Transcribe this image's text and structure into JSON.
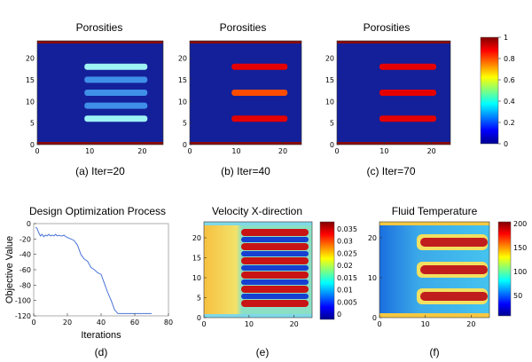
{
  "porosity_colorbar": {
    "ticks": [
      "1",
      "0.8",
      "0.6",
      "0.4",
      "0.2",
      "0"
    ]
  },
  "chart_data": [
    {
      "type": "heatmap",
      "title": "Porosities",
      "caption": "(a) Iter=20",
      "xlim": [
        0,
        24
      ],
      "ylim": [
        0,
        24
      ],
      "xticks": [
        "0",
        "10",
        "20"
      ],
      "yticks": [
        "0",
        "5",
        "10",
        "15",
        "20"
      ],
      "background_value": 0,
      "bars": [
        {
          "y": 18,
          "x0": 9,
          "x1": 21,
          "value": 0.6
        },
        {
          "y": 15,
          "x0": 9,
          "x1": 21,
          "value": 0.4
        },
        {
          "y": 12,
          "x0": 9,
          "x1": 21,
          "value": 0.4
        },
        {
          "y": 9,
          "x0": 9,
          "x1": 21,
          "value": 0.4
        },
        {
          "y": 6,
          "x0": 9,
          "x1": 21,
          "value": 0.6
        }
      ]
    },
    {
      "type": "heatmap",
      "title": "Porosities",
      "caption": "(b) Iter=40",
      "xlim": [
        0,
        24
      ],
      "ylim": [
        0,
        24
      ],
      "xticks": [
        "0",
        "10",
        "20"
      ],
      "yticks": [
        "0",
        "5",
        "10",
        "15",
        "20"
      ],
      "background_value": 0,
      "bars": [
        {
          "y": 18,
          "x0": 9,
          "x1": 21,
          "value": 0.9
        },
        {
          "y": 12,
          "x0": 9,
          "x1": 21,
          "value": 0.8
        },
        {
          "y": 6,
          "x0": 9,
          "x1": 21,
          "value": 0.9
        }
      ]
    },
    {
      "type": "heatmap",
      "title": "Porosities",
      "caption": "(c) Iter=70",
      "xlim": [
        0,
        24
      ],
      "ylim": [
        0,
        24
      ],
      "xticks": [
        "0",
        "10",
        "20"
      ],
      "yticks": [
        "0",
        "5",
        "10",
        "15",
        "20"
      ],
      "background_value": 0,
      "bars": [
        {
          "y": 18,
          "x0": 9,
          "x1": 21,
          "value": 0.9
        },
        {
          "y": 12,
          "x0": 9,
          "x1": 21,
          "value": 0.9
        },
        {
          "y": 6,
          "x0": 9,
          "x1": 21,
          "value": 0.9
        }
      ]
    },
    {
      "type": "line",
      "title": "Design Optimization Process",
      "caption": "(d)",
      "xlabel": "Iterations",
      "ylabel": "Objective Value",
      "xlim": [
        0,
        80
      ],
      "ylim": [
        -120,
        0
      ],
      "xticks": [
        "0",
        "20",
        "40",
        "60",
        "80"
      ],
      "yticks": [
        "0",
        "-20",
        "-40",
        "-60",
        "-80",
        "-100",
        "-120"
      ],
      "color": "#4a73d8",
      "x": [
        1,
        2,
        3,
        4,
        5,
        6,
        7,
        8,
        9,
        10,
        11,
        12,
        13,
        14,
        15,
        16,
        17,
        18,
        19,
        20,
        22,
        24,
        26,
        28,
        30,
        32,
        34,
        36,
        38,
        40,
        42,
        44,
        46,
        48,
        50,
        55,
        60,
        65,
        70
      ],
      "y": [
        -5,
        -6,
        -12,
        -16,
        -14,
        -17,
        -15,
        -16,
        -14,
        -16,
        -15,
        -16,
        -14,
        -16,
        -15,
        -16,
        -16,
        -15,
        -17,
        -18,
        -20,
        -22,
        -28,
        -40,
        -46,
        -49,
        -57,
        -60,
        -64,
        -66,
        -78,
        -90,
        -100,
        -112,
        -117,
        -117,
        -117,
        -117,
        -117
      ]
    },
    {
      "type": "heatmap",
      "title": "Velocity X-direction",
      "caption": "(e)",
      "xlim": [
        0,
        24
      ],
      "ylim": [
        0,
        24
      ],
      "xticks": [
        "0",
        "10",
        "20"
      ],
      "yticks": [
        "0",
        "5",
        "10",
        "15",
        "20"
      ],
      "colorbar_ticks": [
        "0.035",
        "0.03",
        "0.025",
        "0.02",
        "0.015",
        "0.01",
        "0.005",
        "0"
      ]
    },
    {
      "type": "heatmap",
      "title": "Fluid Temperature",
      "caption": "(f)",
      "xlim": [
        0,
        24
      ],
      "ylim": [
        0,
        24
      ],
      "xticks": [
        "0",
        "10",
        "20"
      ],
      "yticks": [
        "0",
        "10",
        "20"
      ],
      "colorbar_ticks": [
        "200",
        "150",
        "100",
        "50"
      ]
    }
  ]
}
